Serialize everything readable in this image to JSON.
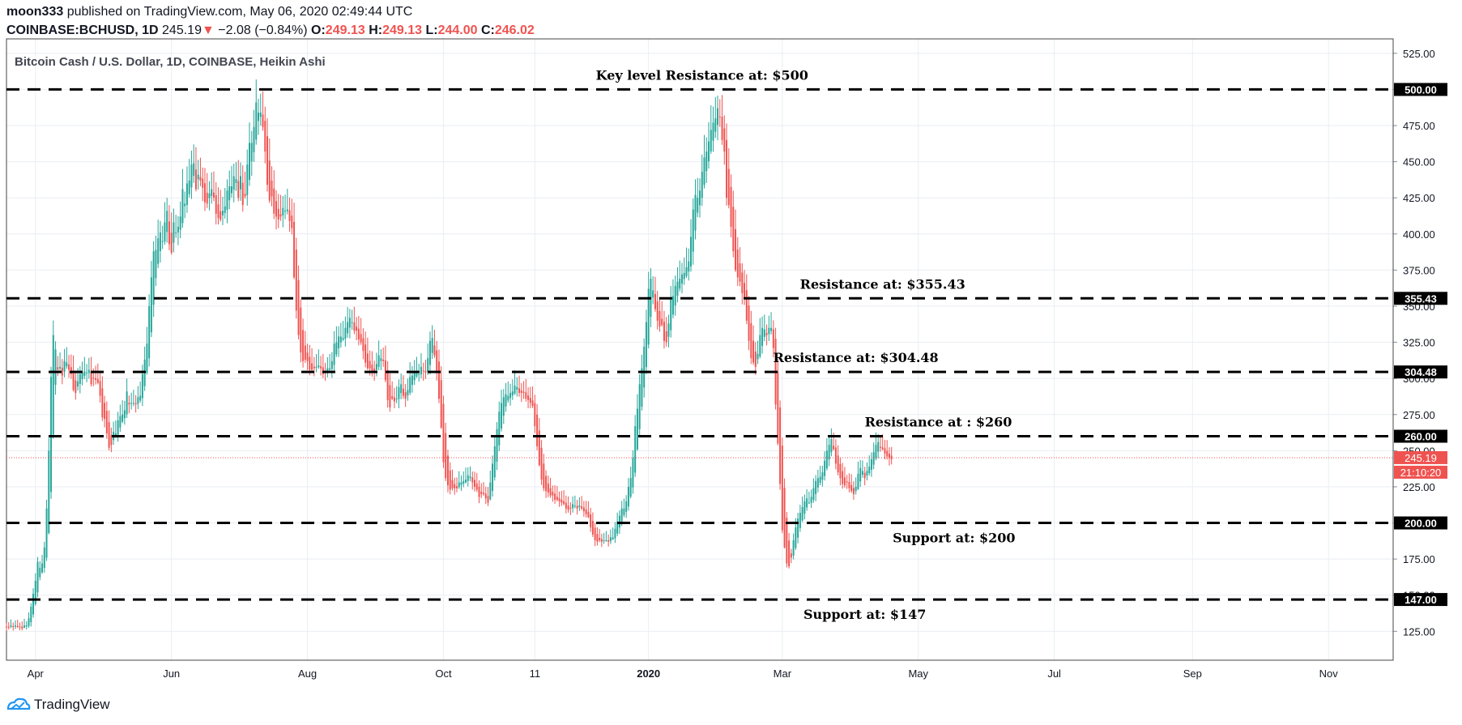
{
  "header": {
    "publisher": "moon333",
    "published_text": "published on TradingView.com, May 06, 2020 02:49:44 UTC",
    "symbol": "COINBASE:BCHUSD, 1D",
    "last": "245.19",
    "change_arrow": "▼",
    "change": "−2.08 (−0.84%)",
    "o_label": "O:",
    "o": "249.13",
    "h_label": "H:",
    "h": "249.13",
    "l_label": "L:",
    "l": "244.00",
    "c_label": "C:",
    "c": "246.02"
  },
  "chart_title": "Bitcoin Cash / U.S. Dollar, 1D, COINBASE, Heikin Ashi",
  "footer": {
    "brand": "TradingView",
    "logo_icon": "tradingview-logo-icon"
  },
  "colors": {
    "up": "#26a69a",
    "down": "#ef5350",
    "grid": "#e9eef3",
    "axis_text": "#131722",
    "line": "#000000",
    "last_price_bg": "#ef5350"
  },
  "chart_data": {
    "type": "candlestick",
    "style": "Heikin Ashi",
    "x_range": [
      "2019-03-19",
      "2020-11-30"
    ],
    "y_range": [
      105,
      535
    ],
    "grid": true,
    "x_ticks": [
      {
        "date": "2019-04-01",
        "label": "Apr",
        "bold": false
      },
      {
        "date": "2019-06-01",
        "label": "Jun",
        "bold": false
      },
      {
        "date": "2019-08-01",
        "label": "Aug",
        "bold": false
      },
      {
        "date": "2019-10-01",
        "label": "Oct",
        "bold": false
      },
      {
        "date": "2019-11-11",
        "label": "11",
        "bold": false
      },
      {
        "date": "2020-01-01",
        "label": "2020",
        "bold": true
      },
      {
        "date": "2020-03-01",
        "label": "Mar",
        "bold": false
      },
      {
        "date": "2020-05-01",
        "label": "May",
        "bold": false
      },
      {
        "date": "2020-07-01",
        "label": "Jul",
        "bold": false
      },
      {
        "date": "2020-09-01",
        "label": "Sep",
        "bold": false
      },
      {
        "date": "2020-11-01",
        "label": "Nov",
        "bold": false
      }
    ],
    "y_ticks": [
      "125.00",
      "150.00",
      "175.00",
      "200.00",
      "225.00",
      "250.00",
      "275.00",
      "300.00",
      "325.00",
      "350.00",
      "375.00",
      "400.00",
      "425.00",
      "450.00",
      "475.00",
      "500.00",
      "525.00"
    ],
    "levels": [
      {
        "value": 500,
        "tag": "500.00",
        "label": "Key level Resistance at: $500",
        "label_date": "2020-01-25",
        "label_pos": "above"
      },
      {
        "value": 355.43,
        "tag": "355.43",
        "label": "Resistance at: $355.43",
        "label_date": "2020-04-15",
        "label_pos": "above"
      },
      {
        "value": 304.48,
        "tag": "304.48",
        "label": "Resistance at: $304.48",
        "label_date": "2020-04-03",
        "label_pos": "above"
      },
      {
        "value": 260,
        "tag": "260.00",
        "label": "Resistance at : $260",
        "label_date": "2020-05-10",
        "label_pos": "above"
      },
      {
        "value": 200,
        "tag": "200.00",
        "label": "Support at: $200",
        "label_date": "2020-05-17",
        "label_pos": "below"
      },
      {
        "value": 147,
        "tag": "147.00",
        "label": "Support at: $147",
        "label_date": "2020-04-07",
        "label_pos": "below"
      }
    ],
    "last_price": {
      "value": 245.19,
      "label": "245.19",
      "countdown": "21:10:20"
    },
    "candle_start": "2019-03-19",
    "closes": [
      128,
      128,
      129,
      128,
      129,
      128,
      128,
      127,
      129,
      129,
      134,
      142,
      151,
      160,
      173,
      169,
      172,
      183,
      210,
      250,
      301,
      330,
      320,
      306,
      308,
      302,
      312,
      311,
      306,
      303,
      292,
      290,
      298,
      303,
      304,
      305,
      304,
      306,
      296,
      300,
      299,
      297,
      288,
      273,
      272,
      262,
      252,
      254,
      263,
      262,
      271,
      274,
      275,
      278,
      291,
      282,
      283,
      283,
      282,
      287,
      288,
      303,
      313,
      324,
      350,
      370,
      388,
      389,
      397,
      401,
      395,
      408,
      416,
      393,
      387,
      408,
      401,
      405,
      412,
      431,
      421,
      435,
      437,
      448,
      449,
      431,
      441,
      437,
      432,
      422,
      421,
      428,
      431,
      425,
      414,
      411,
      410,
      416,
      419,
      430,
      433,
      433,
      440,
      438,
      425,
      440,
      420,
      426,
      448,
      463,
      463,
      474,
      491,
      484,
      484,
      474,
      457,
      434,
      423,
      426,
      414,
      412,
      410,
      412,
      418,
      416,
      417,
      409,
      404,
      370,
      347,
      330,
      318,
      312,
      313,
      312,
      306,
      306,
      307,
      308,
      309,
      307,
      303,
      305,
      307,
      307,
      312,
      324,
      325,
      329,
      329,
      328,
      335,
      339,
      342,
      339,
      333,
      333,
      327,
      325,
      319,
      311,
      307,
      307,
      304,
      305,
      310,
      316,
      314,
      312,
      299,
      285,
      280,
      286,
      284,
      286,
      294,
      296,
      288,
      286,
      292,
      301,
      302,
      304,
      304,
      303,
      308,
      305,
      304,
      314,
      326,
      328,
      316,
      304,
      286,
      266,
      242,
      231,
      226,
      223,
      224,
      224,
      224,
      228,
      228,
      229,
      230,
      233,
      232,
      228,
      225,
      223,
      218,
      220,
      220,
      217,
      214,
      228,
      241,
      253,
      265,
      277,
      283,
      287,
      289,
      288,
      290,
      291,
      295,
      294,
      290,
      290,
      290,
      286,
      285,
      283,
      281,
      267,
      253,
      240,
      230,
      224,
      222,
      221,
      219,
      219,
      216,
      216,
      215,
      214,
      213,
      210,
      209,
      210,
      213,
      212,
      210,
      212,
      210,
      208,
      206,
      204,
      197,
      192,
      188,
      187,
      188,
      187,
      188,
      188,
      187,
      190,
      190,
      196,
      201,
      205,
      210,
      210,
      215,
      225,
      231,
      245,
      267,
      279,
      296,
      307,
      322,
      339,
      362,
      369,
      361,
      348,
      340,
      336,
      337,
      326,
      325,
      338,
      355,
      357,
      364,
      367,
      369,
      372,
      373,
      377,
      381,
      398,
      417,
      427,
      425,
      430,
      443,
      453,
      457,
      464,
      472,
      477,
      480,
      487,
      481,
      465,
      457,
      425,
      420,
      405,
      388,
      375,
      370,
      367,
      359,
      356,
      340,
      326,
      314,
      311,
      308,
      317,
      330,
      335,
      334,
      330,
      335,
      335,
      321,
      282,
      255,
      227,
      195,
      183,
      172,
      170,
      176,
      188,
      197,
      203,
      207,
      211,
      215,
      217,
      214,
      218,
      224,
      229,
      231,
      232,
      235,
      243,
      250,
      254,
      258,
      251,
      241,
      235,
      231,
      227,
      226,
      228,
      224,
      222,
      220,
      225,
      234,
      238,
      236,
      231,
      236,
      239,
      244,
      249,
      254,
      256,
      252,
      251,
      248,
      246,
      245,
      244
    ]
  }
}
